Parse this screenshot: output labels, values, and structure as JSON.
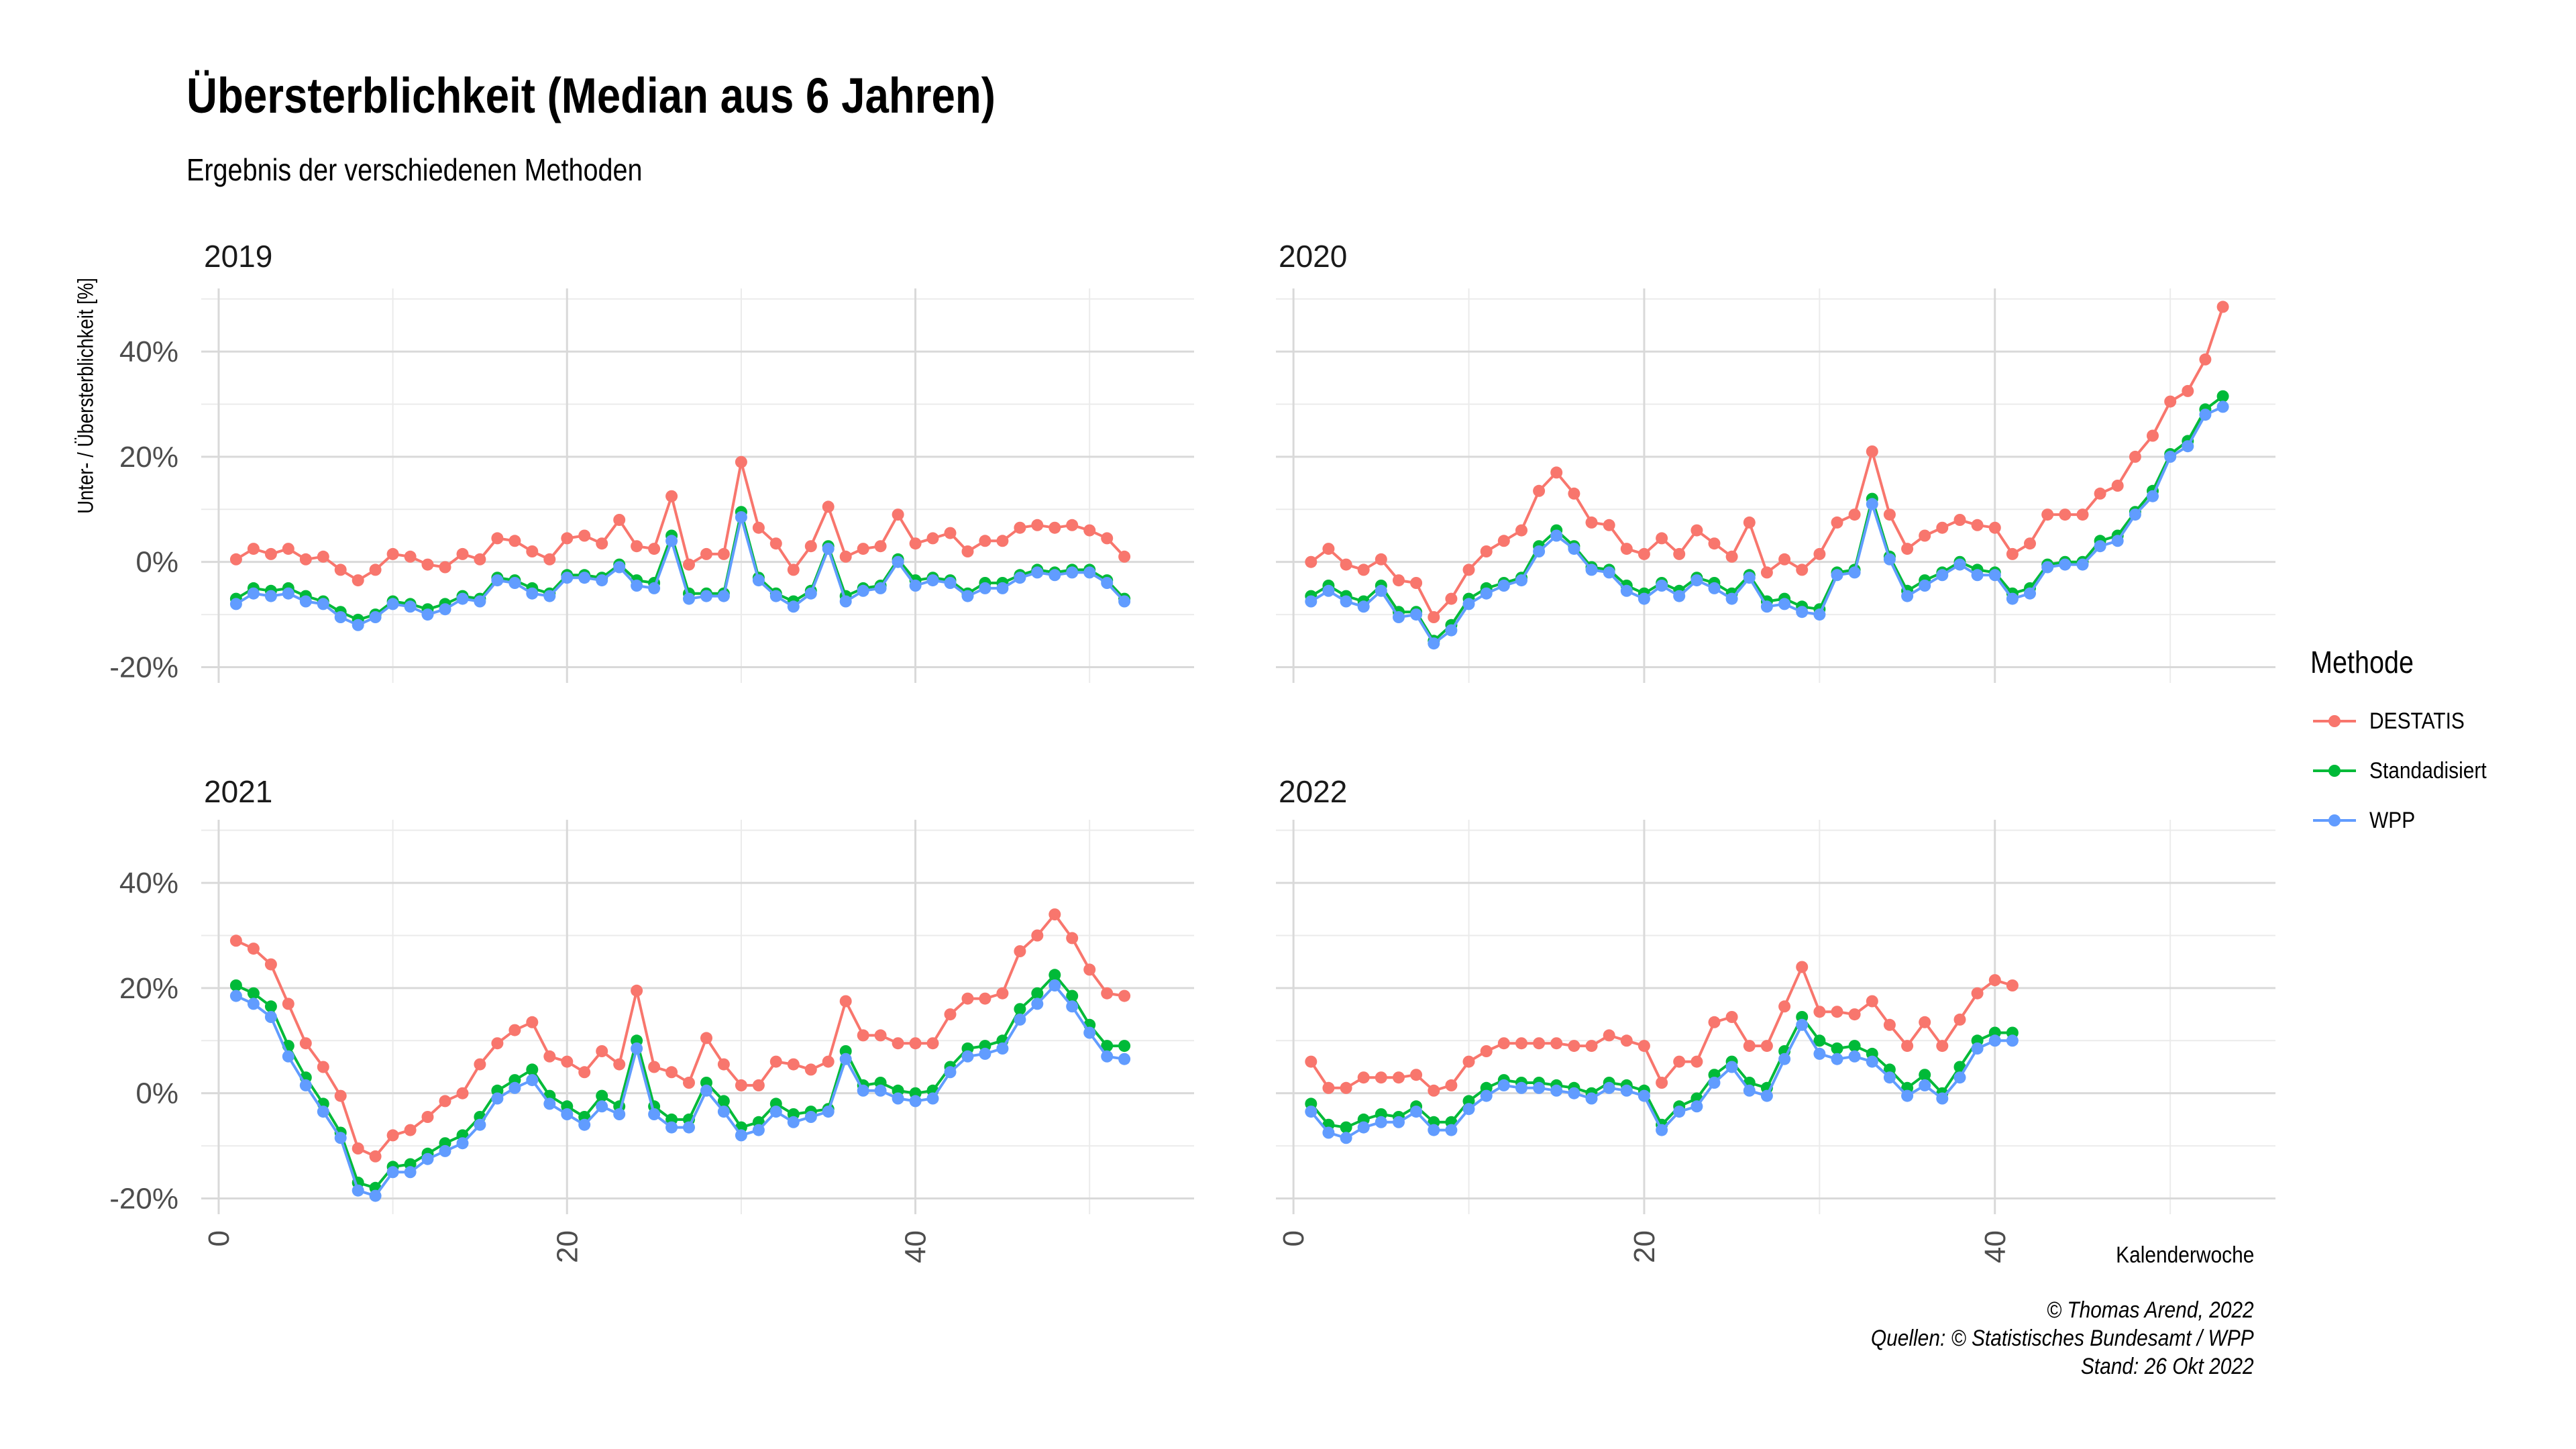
{
  "title": "Übersterblichkeit (Median aus 6 Jahren)",
  "subtitle": "Ergebnis der verschiedenen Methoden",
  "y_axis_label": "Unter- / Übersterblichkeit [%]",
  "x_axis_label": "Kalenderwoche",
  "legend": {
    "title": "Methode",
    "items": [
      {
        "label": "DESTATIS",
        "color": "#F8766D"
      },
      {
        "label": "Standadisiert",
        "color": "#00BA38"
      },
      {
        "label": "WPP",
        "color": "#619CFF"
      }
    ]
  },
  "caption": [
    "© Thomas Arend, 2022",
    "Quellen: © Statistisches Bundesamt / WPP",
    "Stand: 26 Okt 2022"
  ],
  "chart_data": {
    "type": "line",
    "facet_by": "year",
    "xlim": [
      -1,
      56
    ],
    "ylim": [
      -23,
      52
    ],
    "x_ticks": [
      0,
      20,
      40
    ],
    "x_tick_labels": [
      "0",
      "20",
      "40"
    ],
    "y_ticks": [
      -20,
      0,
      20,
      40
    ],
    "y_tick_labels": [
      "-20%",
      "0%",
      "20%",
      "40%"
    ],
    "grid": true,
    "legend_position": "right",
    "panels": [
      {
        "label": "2019",
        "series": [
          {
            "name": "DESTATIS",
            "color": "#F8766D",
            "x_start": 1,
            "values": [
              0.5,
              2.5,
              1.5,
              2.5,
              0.5,
              1,
              -1.5,
              -3.5,
              -1.5,
              1.5,
              1,
              -0.5,
              -1,
              1.5,
              0.5,
              4.5,
              4,
              2,
              0.5,
              4.5,
              5,
              3.5,
              8,
              3,
              2.5,
              12.5,
              -0.5,
              1.5,
              1.5,
              19,
              6.5,
              3.5,
              -1.5,
              3,
              10.5,
              1,
              2.5,
              3,
              9,
              3.5,
              4.5,
              5.5,
              2,
              4,
              4,
              6.5,
              7,
              6.5,
              7,
              6,
              4.5,
              1
            ]
          },
          {
            "name": "Standadisiert",
            "color": "#00BA38",
            "x_start": 1,
            "values": [
              -7,
              -5,
              -5.5,
              -5,
              -6.5,
              -7.5,
              -9.5,
              -11,
              -10,
              -7.5,
              -8,
              -9,
              -8,
              -6.5,
              -7,
              -3,
              -3.5,
              -5,
              -6,
              -2.5,
              -2.5,
              -3,
              -0.5,
              -3.5,
              -4,
              5,
              -6,
              -6,
              -6,
              9.5,
              -3,
              -6,
              -7.5,
              -5.5,
              3,
              -6.5,
              -5,
              -4.5,
              0.5,
              -3.5,
              -3,
              -3.5,
              -6,
              -4,
              -4,
              -2.5,
              -1.5,
              -2,
              -1.5,
              -1.5,
              -3.5,
              -7
            ]
          },
          {
            "name": "WPP",
            "color": "#619CFF",
            "x_start": 1,
            "values": [
              -8,
              -6,
              -6.5,
              -6,
              -7.5,
              -8,
              -10.5,
              -12,
              -10.5,
              -8,
              -8.5,
              -10,
              -9,
              -7,
              -7.5,
              -3.5,
              -4,
              -6,
              -6.5,
              -3,
              -3,
              -3.5,
              -1,
              -4.5,
              -5,
              4,
              -7,
              -6.5,
              -6.5,
              8.5,
              -3.5,
              -6.5,
              -8.5,
              -6,
              2.5,
              -7.5,
              -5.5,
              -5,
              0,
              -4.5,
              -3.5,
              -4,
              -6.5,
              -5,
              -5,
              -3,
              -2,
              -2.5,
              -2,
              -2,
              -4,
              -7.5
            ]
          }
        ]
      },
      {
        "label": "2020",
        "series": [
          {
            "name": "DESTATIS",
            "color": "#F8766D",
            "x_start": 1,
            "values": [
              0,
              2.5,
              -0.5,
              -1.5,
              0.5,
              -3.5,
              -4,
              -10.5,
              -7,
              -1.5,
              2,
              4,
              6,
              13.5,
              17,
              13,
              7.5,
              7,
              2.5,
              1.5,
              4.5,
              1.5,
              6,
              3.5,
              1,
              7.5,
              -2,
              0.5,
              -1.5,
              1.5,
              7.5,
              9,
              21,
              9,
              2.5,
              5,
              6.5,
              8,
              7,
              6.5,
              1.5,
              3.5,
              9,
              9,
              9,
              13,
              14.5,
              20,
              24,
              30.5,
              32.5,
              38.5,
              48.5
            ]
          },
          {
            "name": "Standadisiert",
            "color": "#00BA38",
            "x_start": 1,
            "values": [
              -6.5,
              -4.5,
              -6.5,
              -7.5,
              -4.5,
              -9.5,
              -9.5,
              -15,
              -12,
              -7,
              -5,
              -4,
              -3,
              3,
              6,
              3,
              -1,
              -1.5,
              -4.5,
              -6,
              -4,
              -5.5,
              -3,
              -4,
              -6,
              -2.5,
              -7.5,
              -7,
              -8.5,
              -9,
              -2,
              -1.5,
              12,
              1,
              -5.5,
              -3.5,
              -2,
              0,
              -1.5,
              -2,
              -6,
              -5,
              -0.5,
              0,
              0,
              4,
              5,
              9.5,
              13.5,
              20.5,
              23,
              29,
              31.5
            ]
          },
          {
            "name": "WPP",
            "color": "#619CFF",
            "x_start": 1,
            "values": [
              -7.5,
              -5.5,
              -7.5,
              -8.5,
              -5.5,
              -10.5,
              -10,
              -15.5,
              -13,
              -8,
              -6,
              -4.5,
              -3.5,
              2,
              5,
              2.5,
              -1.5,
              -2,
              -5.5,
              -7,
              -4.5,
              -6.5,
              -3.5,
              -5,
              -7,
              -3,
              -8.5,
              -8,
              -9.5,
              -10,
              -2.5,
              -2,
              11,
              0.5,
              -6.5,
              -4.5,
              -2.5,
              -0.5,
              -2.5,
              -2.5,
              -7,
              -6,
              -1,
              -0.5,
              -0.5,
              3,
              4,
              9,
              12.5,
              20,
              22,
              28,
              29.5
            ]
          }
        ]
      },
      {
        "label": "2021",
        "series": [
          {
            "name": "DESTATIS",
            "color": "#F8766D",
            "x_start": 1,
            "values": [
              29,
              27.5,
              24.5,
              17,
              9.5,
              5,
              -0.5,
              -10.5,
              -12,
              -8,
              -7,
              -4.5,
              -1.5,
              0,
              5.5,
              9.5,
              12,
              13.5,
              7,
              6,
              4,
              8,
              5.5,
              19.5,
              5,
              4,
              2,
              10.5,
              5.5,
              1.5,
              1.5,
              6,
              5.5,
              4.5,
              6,
              17.5,
              11,
              11,
              9.5,
              9.5,
              9.5,
              15,
              18,
              18,
              19,
              27,
              30,
              34,
              29.5,
              23.5,
              19,
              18.5
            ]
          },
          {
            "name": "Standadisiert",
            "color": "#00BA38",
            "x_start": 1,
            "values": [
              20.5,
              19,
              16.5,
              9,
              3,
              -2,
              -7.5,
              -17,
              -18,
              -14,
              -13.5,
              -11.5,
              -9.5,
              -8,
              -4.5,
              0.5,
              2.5,
              4.5,
              -0.5,
              -2.5,
              -4.5,
              -0.5,
              -2.5,
              10,
              -2.5,
              -5,
              -5,
              2,
              -1.5,
              -6.5,
              -5.5,
              -2,
              -4,
              -3.5,
              -3,
              8,
              1.5,
              2,
              0.5,
              0,
              0.5,
              5,
              8.5,
              9,
              10,
              16,
              19,
              22.5,
              18.5,
              13,
              9,
              9
            ]
          },
          {
            "name": "WPP",
            "color": "#619CFF",
            "x_start": 1,
            "values": [
              18.5,
              17,
              14.5,
              7,
              1.5,
              -3.5,
              -8.5,
              -18.5,
              -19.5,
              -15,
              -15,
              -12.5,
              -11,
              -9.5,
              -6,
              -1,
              1,
              2.5,
              -2,
              -4,
              -6,
              -2.5,
              -4,
              8.5,
              -4,
              -6.5,
              -6.5,
              0.5,
              -3.5,
              -8,
              -7,
              -3.5,
              -5.5,
              -4.5,
              -3.5,
              6.5,
              0.5,
              0.5,
              -1,
              -1.5,
              -1,
              4,
              7,
              7.5,
              8.5,
              14,
              17,
              20.5,
              16.5,
              11.5,
              7,
              6.5
            ]
          }
        ]
      },
      {
        "label": "2022",
        "series": [
          {
            "name": "DESTATIS",
            "color": "#F8766D",
            "x_start": 1,
            "values": [
              6,
              1,
              1,
              3,
              3,
              3,
              3.5,
              0.5,
              1.5,
              6,
              8,
              9.5,
              9.5,
              9.5,
              9.5,
              9,
              9,
              11,
              10,
              9,
              2,
              6,
              6,
              13.5,
              14.5,
              9,
              9,
              16.5,
              24,
              15.5,
              15.5,
              15,
              17.5,
              13,
              9,
              13.5,
              9,
              14,
              19,
              21.5,
              20.5
            ]
          },
          {
            "name": "Standadisiert",
            "color": "#00BA38",
            "x_start": 1,
            "values": [
              -2,
              -6,
              -6.5,
              -5,
              -4,
              -4.5,
              -2.5,
              -5.5,
              -5.5,
              -1.5,
              1,
              2.5,
              2,
              2,
              1.5,
              1,
              0,
              2,
              1.5,
              0.5,
              -6,
              -2.5,
              -1,
              3.5,
              6,
              2,
              1,
              8,
              14.5,
              10,
              8.5,
              9,
              7.5,
              4.5,
              1,
              3.5,
              0,
              5,
              10,
              11.5,
              11.5
            ]
          },
          {
            "name": "WPP",
            "color": "#619CFF",
            "x_start": 1,
            "values": [
              -3.5,
              -7.5,
              -8.5,
              -6.5,
              -5.5,
              -5.5,
              -3.5,
              -7,
              -7,
              -3,
              -0.5,
              1.5,
              1,
              1,
              0.5,
              0,
              -1,
              1,
              0.5,
              -0.5,
              -7,
              -3.5,
              -2.5,
              2,
              5,
              0.5,
              -0.5,
              6.5,
              13,
              7.5,
              6.5,
              7,
              6,
              3,
              -0.5,
              1.5,
              -1,
              3,
              8.5,
              10,
              10
            ]
          }
        ]
      }
    ]
  }
}
